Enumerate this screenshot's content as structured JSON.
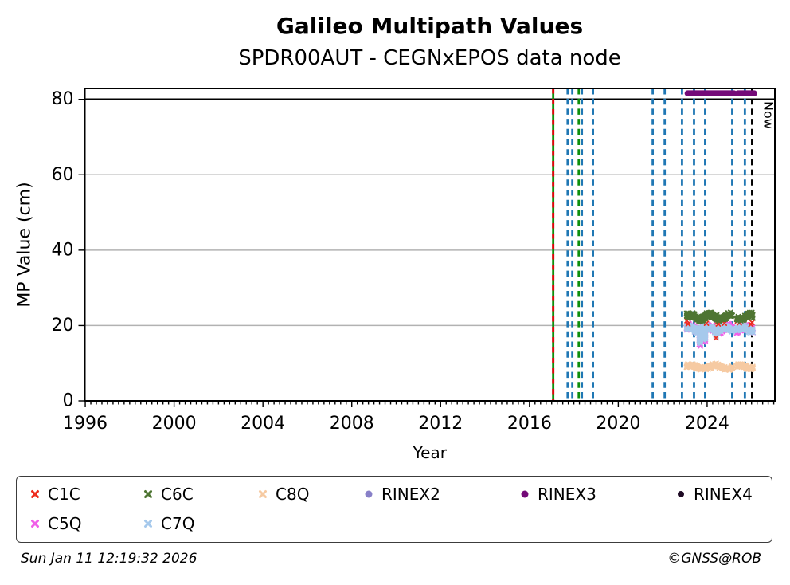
{
  "header": {
    "title": "Galileo Multipath Values",
    "subtitle": "SPDR00AUT - CEGNxEPOS data node"
  },
  "footer": {
    "timestamp": "Sun Jan 11 12:19:32 2026",
    "credit": "©GNSS@ROB"
  },
  "chart_data": {
    "type": "scatter",
    "title": "Galileo Multipath Values",
    "subtitle": "SPDR00AUT - CEGNxEPOS data node",
    "xlabel": "Year",
    "ylabel": "MP Value (cm)",
    "xlim": [
      1995.98,
      2027.05
    ],
    "ylim": [
      0,
      82.9
    ],
    "x_major_ticks": [
      1996,
      2000,
      2004,
      2008,
      2012,
      2016,
      2020,
      2024
    ],
    "x_minor_step": 0.25,
    "y_ticks": [
      0,
      20,
      40,
      60,
      80
    ],
    "grid_y": [
      20,
      40,
      60
    ],
    "grid_color": "#b2b2b2",
    "hline": {
      "y": 80,
      "color": "#000000"
    },
    "now_marker": {
      "year": 2026.02,
      "label": "Now",
      "color": "#000000"
    },
    "event_lines": [
      {
        "year": 2017.07,
        "style": "solid",
        "color": "#0d8f0d",
        "overlay": {
          "style": "dashed",
          "color": "#e8000b"
        }
      },
      {
        "year": 2017.72,
        "style": "dashed",
        "color": "#1f77b4"
      },
      {
        "year": 2017.93,
        "style": "dashed",
        "color": "#1f77b4"
      },
      {
        "year": 2018.22,
        "style": "dashed",
        "color": "#0d8f0d"
      },
      {
        "year": 2018.36,
        "style": "dashed",
        "color": "#1f77b4"
      },
      {
        "year": 2018.86,
        "style": "dashed",
        "color": "#1f77b4"
      },
      {
        "year": 2021.55,
        "style": "dashed",
        "color": "#1f77b4"
      },
      {
        "year": 2022.09,
        "style": "dashed",
        "color": "#1f77b4"
      },
      {
        "year": 2022.87,
        "style": "dashed",
        "color": "#1f77b4"
      },
      {
        "year": 2023.41,
        "style": "dashed",
        "color": "#1f77b4"
      },
      {
        "year": 2023.91,
        "style": "dashed",
        "color": "#1f77b4"
      },
      {
        "year": 2025.13,
        "style": "dashed",
        "color": "#1f77b4"
      },
      {
        "year": 2025.7,
        "style": "dashed",
        "color": "#1f77b4"
      }
    ],
    "series": [
      {
        "name": "C5Q",
        "color": "#f060e8",
        "marker": "x",
        "band": {
          "segments": [
            [
              2023.07,
              2025.13
            ],
            [
              2025.33,
              2026.06
            ]
          ],
          "center": 19.2,
          "wave_amp": 0.5,
          "wave_period": 0.85,
          "noise": 1.0,
          "step": 0.011
        },
        "dips": [
          [
            2023.65,
            15.0
          ],
          [
            2023.7,
            14.5
          ],
          [
            2023.82,
            15.6
          ],
          [
            2023.92,
            15.9
          ]
        ]
      },
      {
        "name": "C7Q",
        "color": "#a6c9ec",
        "marker": "x",
        "band": {
          "segments": [
            [
              2023.07,
              2025.13
            ],
            [
              2025.33,
              2026.06
            ]
          ],
          "center": 19.1,
          "wave_amp": 0.45,
          "wave_period": 0.8,
          "noise": 0.75,
          "step": 0.008
        },
        "dips": [
          [
            2023.65,
            15.6
          ],
          [
            2023.7,
            15.2
          ],
          [
            2023.82,
            16.2
          ],
          [
            2023.92,
            16.5
          ],
          [
            2024.4,
            17.0
          ]
        ]
      },
      {
        "name": "C8Q",
        "color": "#f6caa2",
        "marker": "x",
        "band": {
          "segments": [
            [
              2023.07,
              2025.13
            ],
            [
              2025.33,
              2026.06
            ]
          ],
          "center": 9.0,
          "wave_amp": 0.45,
          "wave_period": 1.1,
          "noise": 0.6,
          "step": 0.01
        }
      },
      {
        "name": "C1C",
        "color": "#ee2d1f",
        "marker": "x",
        "points": [
          [
            2023.09,
            21.3
          ],
          [
            2023.14,
            20.4
          ],
          [
            2023.97,
            20.6
          ],
          [
            2024.4,
            16.7
          ],
          [
            2024.45,
            20.9
          ],
          [
            2024.5,
            20.4
          ],
          [
            2024.78,
            20.6
          ],
          [
            2025.36,
            21.2
          ],
          [
            2025.45,
            20.7
          ],
          [
            2025.97,
            20.3
          ],
          [
            2026.02,
            20.8
          ]
        ]
      },
      {
        "name": "C6C",
        "color": "#4e7532",
        "marker": "x",
        "band": {
          "segments": [
            [
              2023.07,
              2025.13
            ],
            [
              2025.33,
              2026.06
            ]
          ],
          "center": 22.3,
          "wave_amp": 0.55,
          "wave_period": 0.9,
          "noise": 0.8,
          "step": 0.008
        }
      },
      {
        "name": "RINEX3",
        "color": "#740a78",
        "marker": "dot",
        "line": {
          "segments": [
            [
              2023.12,
              2025.21
            ],
            [
              2025.38,
              2026.12
            ]
          ],
          "y": 81.6,
          "width": 7.5
        }
      }
    ],
    "legend": {
      "items": [
        {
          "label": "C1C",
          "color": "#ee2d1f",
          "marker": "x"
        },
        {
          "label": "C6C",
          "color": "#4e7532",
          "marker": "x"
        },
        {
          "label": "C8Q",
          "color": "#f6caa2",
          "marker": "x"
        },
        {
          "label": "RINEX2",
          "color": "#8880c8",
          "marker": "dot"
        },
        {
          "label": "RINEX3",
          "color": "#740a78",
          "marker": "dot"
        },
        {
          "label": "RINEX4",
          "color": "#1e0a24",
          "marker": "dot"
        },
        {
          "label": "C5Q",
          "color": "#f060e8",
          "marker": "x"
        },
        {
          "label": "C7Q",
          "color": "#a6c9ec",
          "marker": "x"
        }
      ]
    }
  }
}
